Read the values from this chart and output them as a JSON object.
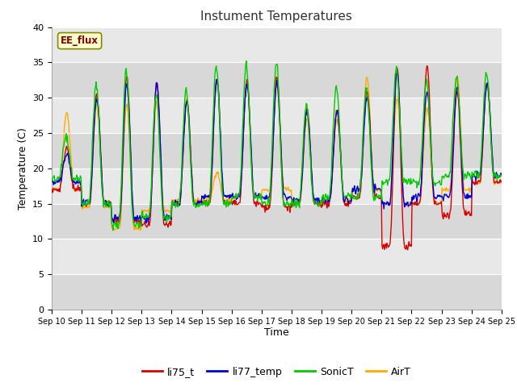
{
  "title": "Instument Temperatures",
  "xlabel": "Time",
  "ylabel": "Temperature (C)",
  "ylim": [
    0,
    40
  ],
  "yticks": [
    0,
    5,
    10,
    15,
    20,
    25,
    30,
    35,
    40
  ],
  "xtick_labels": [
    "Sep 10",
    "Sep 11",
    "Sep 12",
    "Sep 13",
    "Sep 14",
    "Sep 15",
    "Sep 16",
    "Sep 17",
    "Sep 18",
    "Sep 19",
    "Sep 20",
    "Sep 21",
    "Sep 22",
    "Sep 23",
    "Sep 24",
    "Sep 25"
  ],
  "series_colors": {
    "li75_t": "#dd0000",
    "li77_temp": "#0000dd",
    "SonicT": "#00cc00",
    "AirT": "#ffaa00"
  },
  "annotation_text": "EE_flux",
  "fig_bg_color": "#ffffff",
  "plot_bg_color": "#e8e8e8",
  "band_color_light": "#e8e8e8",
  "band_color_dark": "#d8d8d8",
  "grid_color": "#ffffff",
  "line_width": 1.0
}
